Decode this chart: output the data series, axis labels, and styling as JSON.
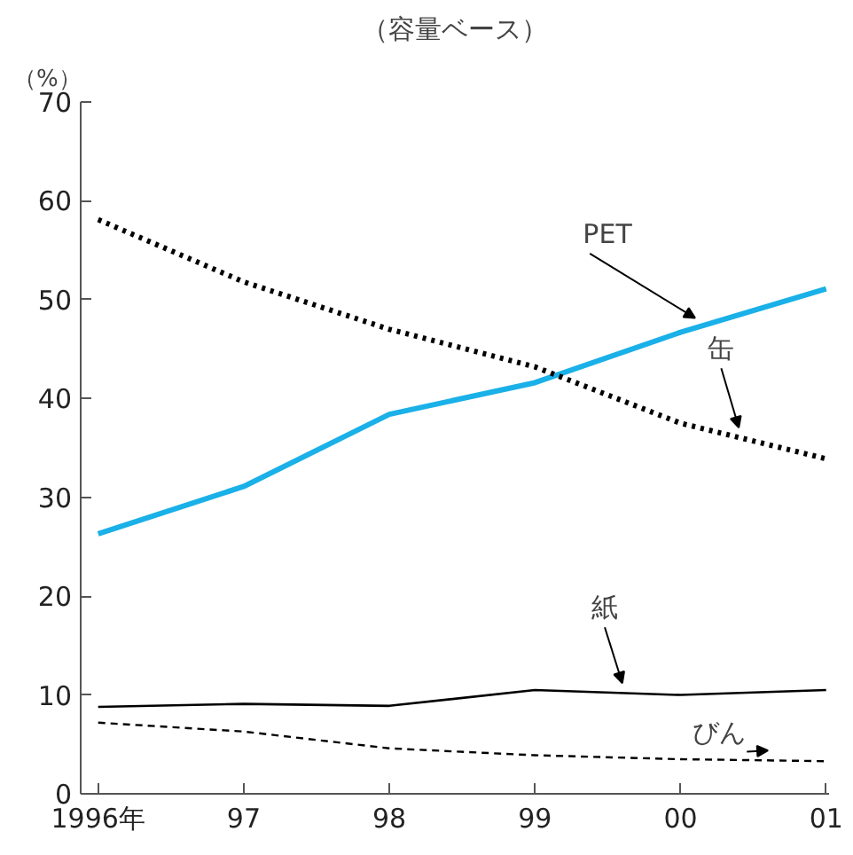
{
  "chart_data": {
    "type": "line",
    "title": "（容量ベース）",
    "ylabel": "（%）",
    "categories": [
      "1996年",
      "97",
      "98",
      "99",
      "00",
      "01"
    ],
    "ylim": [
      0,
      70
    ],
    "yticks": [
      0,
      10,
      20,
      30,
      40,
      50,
      60,
      70
    ],
    "grid": false,
    "marker": "none",
    "series": [
      {
        "name": "PET",
        "color": "#1ab0e8",
        "line_style": "solid",
        "values": [
          26.3,
          31.1,
          38.4,
          41.6,
          46.7,
          51.1
        ]
      },
      {
        "name": "缶",
        "color": "#000000",
        "line_style": "dotted",
        "values": [
          58.1,
          51.8,
          47.0,
          43.2,
          37.5,
          33.9
        ]
      },
      {
        "name": "紙",
        "color": "#000000",
        "line_style": "solid",
        "values": [
          8.8,
          9.1,
          8.9,
          10.5,
          10.0,
          10.5
        ]
      },
      {
        "name": "びん",
        "color": "#000000",
        "line_style": "dashed",
        "values": [
          7.2,
          6.3,
          4.6,
          3.9,
          3.5,
          3.3
        ]
      }
    ]
  }
}
